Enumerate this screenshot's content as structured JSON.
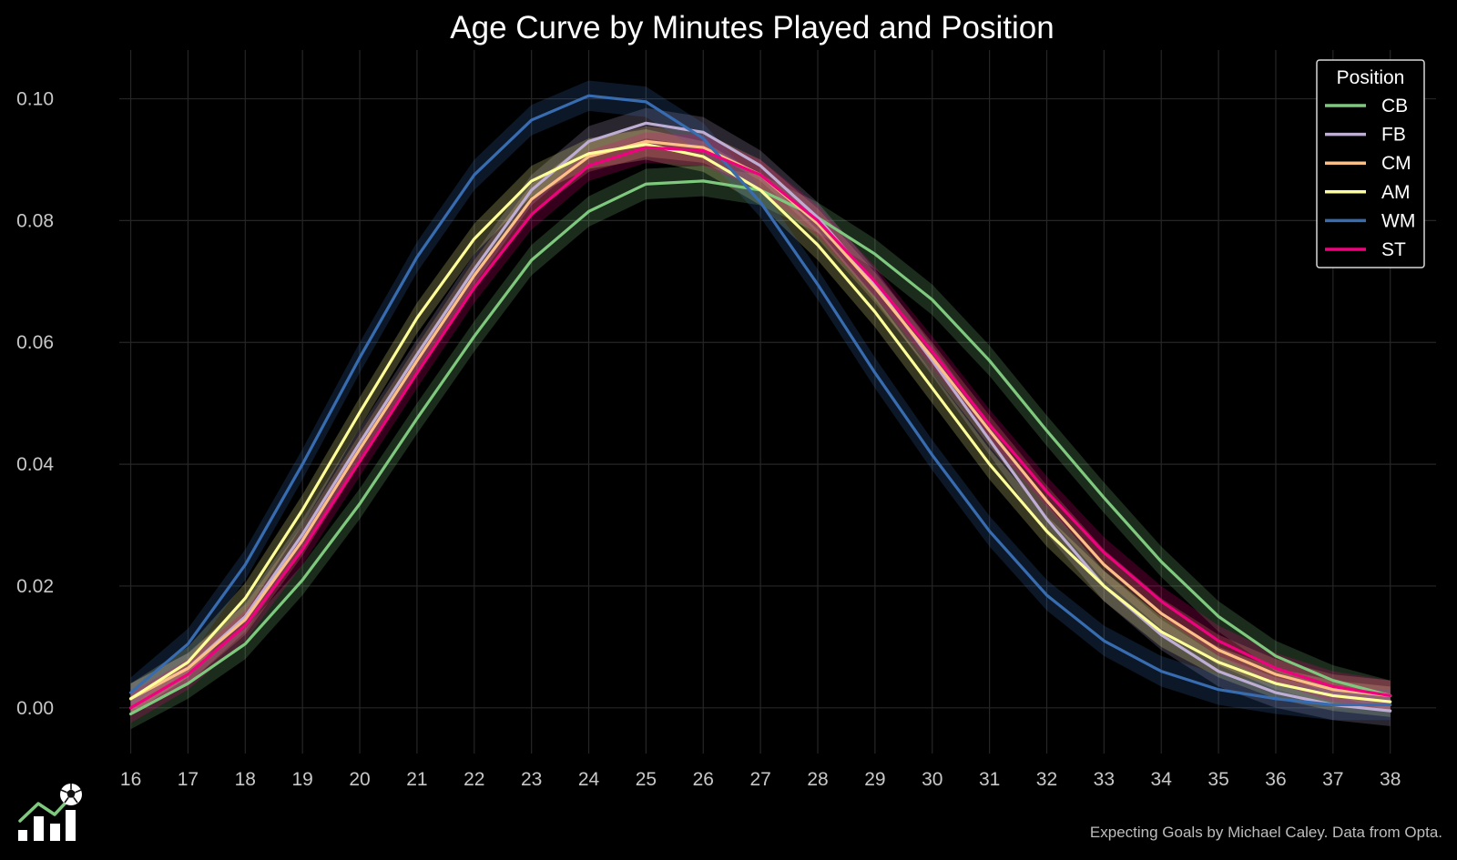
{
  "chart_data": {
    "type": "line",
    "title": "Age Curve by Minutes Played and Position",
    "xlabel": "",
    "ylabel": "",
    "x": [
      16,
      17,
      18,
      19,
      20,
      21,
      22,
      23,
      24,
      25,
      26,
      27,
      28,
      29,
      30,
      31,
      32,
      33,
      34,
      35,
      36,
      37,
      38
    ],
    "xlim": [
      15.8,
      38.8
    ],
    "ylim": [
      -0.0075,
      0.108
    ],
    "yticks": [
      "0.00",
      "0.02",
      "0.04",
      "0.06",
      "0.08",
      "0.10"
    ],
    "ytick_values": [
      0.0,
      0.02,
      0.04,
      0.06,
      0.08,
      0.1
    ],
    "grid": true,
    "confidence_band": 0.0025,
    "legend": {
      "title": "Position",
      "placement": "top-right"
    },
    "series": [
      {
        "name": "CB",
        "color": "#7fc97f",
        "values": [
          -0.001,
          0.004,
          0.0105,
          0.021,
          0.0335,
          0.0475,
          0.061,
          0.0735,
          0.0815,
          0.086,
          0.0865,
          0.085,
          0.0805,
          0.0745,
          0.067,
          0.057,
          0.0455,
          0.0345,
          0.024,
          0.015,
          0.0085,
          0.0045,
          0.002
        ]
      },
      {
        "name": "FB",
        "color": "#beaed4",
        "values": [
          0.0015,
          0.0065,
          0.015,
          0.0285,
          0.0435,
          0.058,
          0.072,
          0.085,
          0.093,
          0.096,
          0.0945,
          0.089,
          0.0805,
          0.0695,
          0.057,
          0.044,
          0.031,
          0.02,
          0.012,
          0.006,
          0.0025,
          0.0005,
          -0.0005
        ]
      },
      {
        "name": "CM",
        "color": "#fdc086",
        "values": [
          0.0015,
          0.0065,
          0.0145,
          0.0275,
          0.0425,
          0.057,
          0.071,
          0.0835,
          0.0905,
          0.093,
          0.092,
          0.0875,
          0.0795,
          0.069,
          0.0575,
          0.0455,
          0.034,
          0.0235,
          0.0155,
          0.0095,
          0.0055,
          0.003,
          0.002
        ]
      },
      {
        "name": "AM",
        "color": "#ffff99",
        "values": [
          0.0015,
          0.0075,
          0.018,
          0.0325,
          0.0485,
          0.064,
          0.077,
          0.0865,
          0.091,
          0.0925,
          0.0905,
          0.085,
          0.076,
          0.065,
          0.0525,
          0.04,
          0.029,
          0.02,
          0.0125,
          0.0075,
          0.004,
          0.002,
          0.001
        ]
      },
      {
        "name": "WM",
        "color": "#386cb0",
        "values": [
          0.0025,
          0.0105,
          0.0235,
          0.04,
          0.0575,
          0.074,
          0.0875,
          0.0965,
          0.1005,
          0.0995,
          0.0935,
          0.083,
          0.0695,
          0.055,
          0.0415,
          0.029,
          0.0185,
          0.011,
          0.006,
          0.003,
          0.0015,
          0.0005,
          0.0005
        ]
      },
      {
        "name": "ST",
        "color": "#f0027f",
        "values": [
          0.0,
          0.0055,
          0.0135,
          0.026,
          0.0405,
          0.055,
          0.069,
          0.081,
          0.089,
          0.092,
          0.0915,
          0.0875,
          0.08,
          0.07,
          0.0585,
          0.0465,
          0.0355,
          0.0255,
          0.0175,
          0.011,
          0.0065,
          0.0035,
          0.002
        ]
      }
    ]
  },
  "footer": {
    "credit": "Expecting Goals by Michael Caley. Data from Opta.",
    "logo_icon": "bar-chart-soccer-ball-icon"
  }
}
